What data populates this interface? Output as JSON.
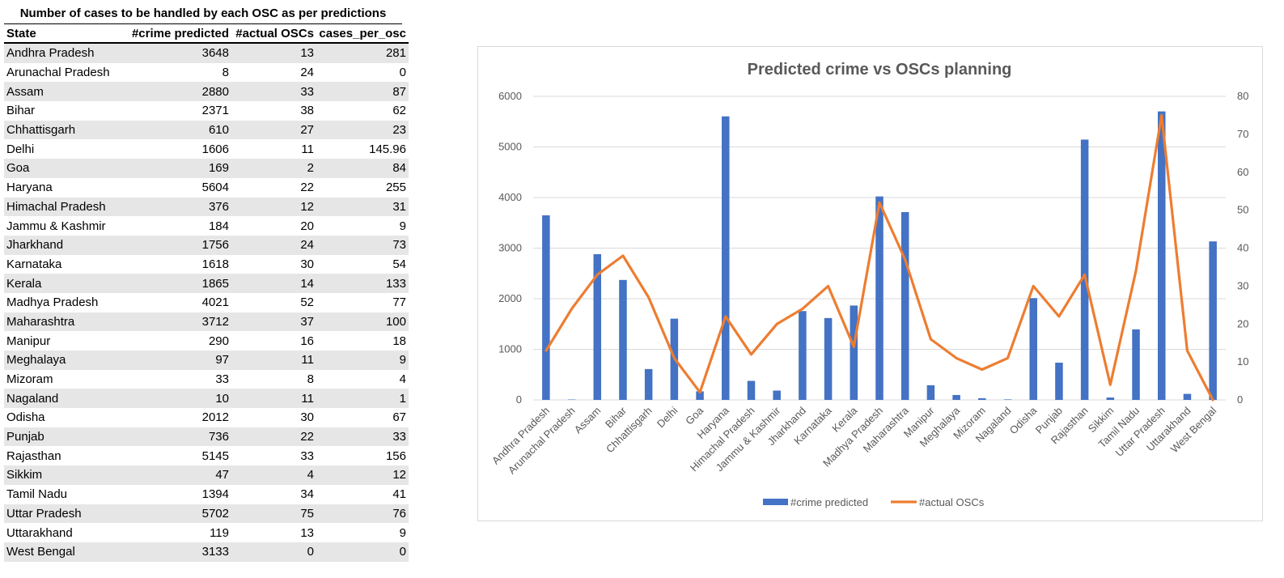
{
  "table": {
    "title": "Number of cases to be handled by each OSC as per predictions",
    "headers": [
      "State",
      "#crime predicted",
      "#actual OSCs",
      "cases_per_osc"
    ],
    "rows": [
      [
        "Andhra Pradesh",
        "3648",
        "13",
        "281"
      ],
      [
        "Arunachal Pradesh",
        "8",
        "24",
        "0"
      ],
      [
        "Assam",
        "2880",
        "33",
        "87"
      ],
      [
        "Bihar",
        "2371",
        "38",
        "62"
      ],
      [
        "Chhattisgarh",
        "610",
        "27",
        "23"
      ],
      [
        "Delhi",
        "1606",
        "11",
        "145.96"
      ],
      [
        "Goa",
        "169",
        "2",
        "84"
      ],
      [
        "Haryana",
        "5604",
        "22",
        "255"
      ],
      [
        "Himachal Pradesh",
        "376",
        "12",
        "31"
      ],
      [
        "Jammu & Kashmir",
        "184",
        "20",
        "9"
      ],
      [
        "Jharkhand",
        "1756",
        "24",
        "73"
      ],
      [
        "Karnataka",
        "1618",
        "30",
        "54"
      ],
      [
        "Kerala",
        "1865",
        "14",
        "133"
      ],
      [
        "Madhya Pradesh",
        "4021",
        "52",
        "77"
      ],
      [
        "Maharashtra",
        "3712",
        "37",
        "100"
      ],
      [
        "Manipur",
        "290",
        "16",
        "18"
      ],
      [
        "Meghalaya",
        "97",
        "11",
        "9"
      ],
      [
        "Mizoram",
        "33",
        "8",
        "4"
      ],
      [
        "Nagaland",
        "10",
        "11",
        "1"
      ],
      [
        "Odisha",
        "2012",
        "30",
        "67"
      ],
      [
        "Punjab",
        "736",
        "22",
        "33"
      ],
      [
        "Rajasthan",
        "5145",
        "33",
        "156"
      ],
      [
        "Sikkim",
        "47",
        "4",
        "12"
      ],
      [
        "Tamil Nadu",
        "1394",
        "34",
        "41"
      ],
      [
        "Uttar Pradesh",
        "5702",
        "75",
        "76"
      ],
      [
        "Uttarakhand",
        "119",
        "13",
        "9"
      ],
      [
        "West Bengal",
        "3133",
        "0",
        "0"
      ]
    ]
  },
  "chart_data": {
    "type": "bar",
    "title": "Predicted crime vs OSCs planning",
    "categories": [
      "Andhra Pradesh",
      "Arunachal Pradesh",
      "Assam",
      "Bihar",
      "Chhattisgarh",
      "Delhi",
      "Goa",
      "Haryana",
      "Himachal Pradesh",
      "Jammu & Kashmir",
      "Jharkhand",
      "Karnataka",
      "Kerala",
      "Madhya Pradesh",
      "Maharashtra",
      "Manipur",
      "Meghalaya",
      "Mizoram",
      "Nagaland",
      "Odisha",
      "Punjab",
      "Rajasthan",
      "Sikkim",
      "Tamil Nadu",
      "Uttar Pradesh",
      "Uttarakhand",
      "West Bengal"
    ],
    "series": [
      {
        "name": "#crime predicted",
        "type": "bar",
        "axis": "primary",
        "color": "#4472c4",
        "values": [
          3648,
          8,
          2880,
          2371,
          610,
          1606,
          169,
          5604,
          376,
          184,
          1756,
          1618,
          1865,
          4021,
          3712,
          290,
          97,
          33,
          10,
          2012,
          736,
          5145,
          47,
          1394,
          5702,
          119,
          3133
        ]
      },
      {
        "name": "#actual OSCs",
        "type": "line",
        "axis": "secondary",
        "color": "#ed7d31",
        "values": [
          13,
          24,
          33,
          38,
          27,
          11,
          2,
          22,
          12,
          20,
          24,
          30,
          14,
          52,
          37,
          16,
          11,
          8,
          11,
          30,
          22,
          33,
          4,
          34,
          75,
          13,
          0
        ]
      }
    ],
    "y_primary": {
      "min": 0,
      "max": 6000,
      "ticks": [
        0,
        1000,
        2000,
        3000,
        4000,
        5000,
        6000
      ]
    },
    "y_secondary": {
      "min": 0,
      "max": 80,
      "ticks": [
        0,
        10,
        20,
        30,
        40,
        50,
        60,
        70,
        80
      ]
    },
    "grid": true,
    "legend": "bottom"
  }
}
